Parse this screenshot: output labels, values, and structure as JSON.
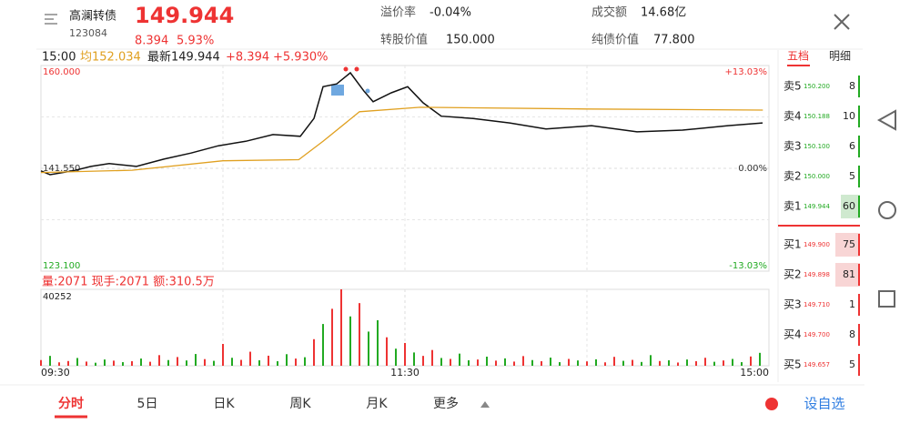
{
  "header": {
    "name": "高澜转债",
    "code": "123084",
    "price": "149.944",
    "change": "8.394",
    "change_pct": "5.93%",
    "premium_label": "溢价率",
    "premium": "-0.04%",
    "conv_label": "转股价值",
    "conv": "150.000",
    "turnover_label": "成交额",
    "turnover": "14.68亿",
    "bond_label": "纯债价值",
    "bond": "77.800"
  },
  "info": {
    "time": "15:00",
    "avg": "均152.034",
    "latest": "最新149.944",
    "chg": "+8.394",
    "pct": "+5.930%"
  },
  "chart_data": [
    {
      "type": "line",
      "xlim": [
        0,
        240
      ],
      "ylim": [
        123.1,
        160
      ],
      "yticks": [
        {
          "value": 160,
          "label": "160.000"
        },
        {
          "value": 141.55,
          "label": "141.550"
        },
        {
          "value": 123.1,
          "label": "123.100"
        }
      ],
      "y2lim": [
        -13.03,
        13.03
      ],
      "y2ticks": [
        {
          "value": 13.03,
          "label": "+13.03%"
        },
        {
          "value": 0,
          "label": "0.00%"
        },
        {
          "value": -13.03,
          "label": "-13.03%"
        }
      ],
      "series": [
        {
          "color": "#111111",
          "x": [
            0,
            3,
            10.5,
            16.5,
            22.5,
            31.5,
            40.5,
            49.5,
            58.5,
            67.5,
            76.5,
            85.5,
            90,
            93,
            97.5,
            102,
            106.5,
            109.5,
            115.5,
            120.9,
            126,
            132,
            142.5,
            154.5,
            166.5,
            181.5,
            196.5,
            211.5,
            226.5,
            237.9
          ],
          "values": [
            141.1,
            140.4,
            141.1,
            141.9,
            142.4,
            141.9,
            143.2,
            144.3,
            145.6,
            146.4,
            147.6,
            147.3,
            150.5,
            156.2,
            156.7,
            158.7,
            155.4,
            153.5,
            155.1,
            156.2,
            153.3,
            150.9,
            150.5,
            149.7,
            148.6,
            149.2,
            148.1,
            148.4,
            149.2,
            149.7
          ]
        },
        {
          "color": "#e0a020",
          "x": [
            0,
            30,
            60,
            85,
            93,
            105,
            125,
            180,
            238
          ],
          "values": [
            140.8,
            141.2,
            142.9,
            143.1,
            146.4,
            151.7,
            152.5,
            152.2,
            152.0
          ]
        }
      ]
    },
    {
      "type": "bar",
      "title": "量:2071 现手:2071 额:310.5万",
      "xlim": [
        0,
        240
      ],
      "ylim": [
        0,
        40252
      ],
      "yticks": [
        40252
      ],
      "xticks": [
        {
          "value": 0,
          "label": "09:30"
        },
        {
          "value": 120,
          "label": "11:30"
        },
        {
          "value": 240,
          "label": "15:00"
        }
      ],
      "x": [
        0,
        3,
        6,
        9,
        12,
        15,
        18,
        21,
        24,
        27,
        30,
        33,
        36,
        39,
        42,
        45,
        48,
        51,
        54,
        57,
        60,
        63,
        66,
        69,
        72,
        75,
        78,
        81,
        84,
        87,
        90,
        93,
        96,
        99,
        102,
        105,
        108,
        111,
        114,
        117,
        120,
        123,
        126,
        129,
        132,
        135,
        138,
        141,
        144,
        147,
        150,
        153,
        156,
        159,
        162,
        165,
        168,
        171,
        174,
        177,
        180,
        183,
        186,
        189,
        192,
        195,
        198,
        201,
        204,
        207,
        210,
        213,
        216,
        219,
        222,
        225,
        228,
        231,
        234,
        237
      ],
      "values": [
        3000,
        5200,
        1800,
        2500,
        4100,
        2200,
        1600,
        3300,
        2700,
        1900,
        2400,
        3800,
        2100,
        5600,
        3000,
        4600,
        2800,
        6200,
        3500,
        2600,
        11500,
        4200,
        3100,
        7400,
        2900,
        5300,
        2400,
        6100,
        3800,
        4500,
        14000,
        22000,
        30000,
        40252,
        26000,
        33000,
        18000,
        24000,
        15000,
        9000,
        12000,
        7000,
        5200,
        8300,
        4100,
        3600,
        6400,
        2900,
        3300,
        4800,
        2700,
        3900,
        2200,
        5100,
        3000,
        2400,
        4300,
        1900,
        3600,
        2800,
        2300,
        3400,
        1800,
        4700,
        2600,
        3100,
        2000,
        5600,
        2500,
        2900,
        1700,
        3300,
        2400,
        4200,
        2100,
        2800,
        3600,
        1900,
        4900,
        6800
      ],
      "colors": [
        "#e33",
        "#2a2",
        "#e33",
        "#e33",
        "#2a2",
        "#e33",
        "#2a2",
        "#2a2",
        "#e33",
        "#2a2",
        "#e33",
        "#2a2",
        "#e33",
        "#e33",
        "#2a2",
        "#e33",
        "#2a2",
        "#2a2",
        "#e33",
        "#2a2",
        "#e33",
        "#2a2",
        "#e33",
        "#e33",
        "#2a2",
        "#e33",
        "#2a2",
        "#2a2",
        "#e33",
        "#2a2",
        "#e33",
        "#2a2",
        "#e33",
        "#e33",
        "#2a2",
        "#e33",
        "#2a2",
        "#2a2",
        "#e33",
        "#2a2",
        "#e33",
        "#2a2",
        "#e33",
        "#e33",
        "#2a2",
        "#e33",
        "#2a2",
        "#2a2",
        "#e33",
        "#2a2",
        "#e33",
        "#2a2",
        "#e33",
        "#e33",
        "#2a2",
        "#e33",
        "#2a2",
        "#2a2",
        "#e33",
        "#2a2",
        "#e33",
        "#2a2",
        "#e33",
        "#e33",
        "#2a2",
        "#e33",
        "#2a2",
        "#2a2",
        "#e33",
        "#2a2",
        "#e33",
        "#2a2",
        "#e33",
        "#e33",
        "#2a2",
        "#e33",
        "#2a2",
        "#2a2",
        "#e33",
        "#2a2"
      ]
    }
  ],
  "orderbook": {
    "tabs": [
      "五档",
      "明细"
    ],
    "asks": [
      [
        "卖5",
        "150.200",
        "8"
      ],
      [
        "卖4",
        "150.188",
        "10"
      ],
      [
        "卖3",
        "150.100",
        "6"
      ],
      [
        "卖2",
        "150.000",
        "5"
      ],
      [
        "卖1",
        "149.944",
        "60"
      ]
    ],
    "bids": [
      [
        "买1",
        "149.900",
        "75"
      ],
      [
        "买2",
        "149.898",
        "81"
      ],
      [
        "买3",
        "149.710",
        "1"
      ],
      [
        "买4",
        "149.700",
        "8"
      ],
      [
        "买5",
        "149.657",
        "5"
      ]
    ]
  },
  "tabs": [
    "分时",
    "5日",
    "日K",
    "周K",
    "月K",
    "更多"
  ],
  "add": "设自选"
}
